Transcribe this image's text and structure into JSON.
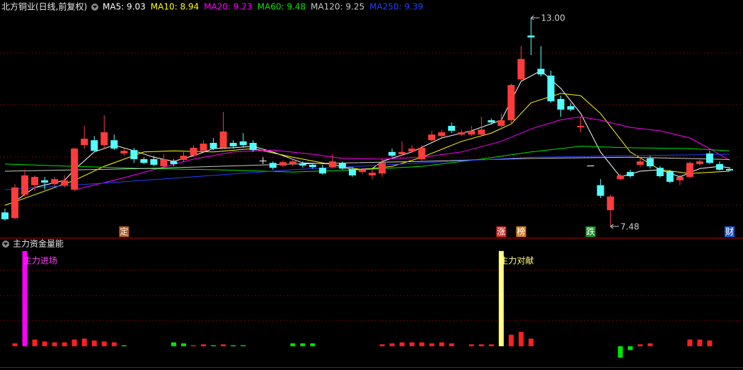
{
  "chart_data": [
    {
      "type": "candlestick",
      "title": "北方铜业(日线,前复权)",
      "open": [
        7.85,
        7.7,
        8.32,
        8.57,
        8.7,
        8.6,
        8.57,
        8.45,
        9.63,
        9.76,
        9.63,
        9.76,
        9.41,
        9.5,
        9.26,
        9.26,
        9.07,
        9.2,
        9.24,
        9.35,
        9.48,
        9.69,
        9.56,
        9.69,
        9.73,
        9.69,
        9.22,
        9.16,
        9.09,
        9.13,
        9.15,
        9.11,
        9.03,
        9.05,
        9.15,
        9.0,
        8.92,
        8.83,
        8.88,
        9.45,
        9.39,
        9.46,
        9.26,
        9.76,
        9.87,
        10.14,
        9.91,
        9.91,
        9.91,
        10.29,
        10.14,
        10.29,
        11.37,
        12.53,
        11.65,
        11.47,
        10.85,
        10.66,
        10.1,
        9.09,
        8.57,
        7.91,
        8.73,
        8.92,
        9.11,
        9.28,
        9.03,
        8.94,
        8.7,
        8.79,
        9.13,
        9.41,
        9.13,
        9.0
      ],
      "high": [
        7.95,
        8.6,
        8.98,
        8.83,
        8.79,
        8.79,
        8.83,
        9.56,
        10.14,
        9.87,
        10.42,
        9.91,
        9.56,
        9.56,
        9.31,
        9.35,
        9.39,
        9.26,
        9.45,
        9.63,
        9.76,
        9.82,
        10.51,
        9.76,
        9.95,
        9.76,
        9.31,
        9.2,
        9.22,
        9.26,
        9.2,
        9.16,
        9.11,
        9.39,
        9.2,
        9.05,
        9.03,
        8.98,
        9.28,
        9.54,
        9.73,
        9.63,
        9.63,
        10.01,
        10.04,
        10.23,
        10.04,
        10.14,
        10.38,
        10.34,
        10.47,
        11.26,
        12.25,
        13.0,
        12.25,
        11.6,
        10.94,
        10.74,
        10.38,
        9.09,
        8.73,
        8.32,
        8.88,
        8.98,
        9.31,
        9.35,
        9.07,
        8.98,
        8.85,
        9.2,
        9.24,
        9.48,
        9.2,
        9.05
      ],
      "low": [
        7.63,
        7.67,
        8.27,
        8.42,
        8.45,
        8.55,
        8.51,
        8.42,
        9.54,
        9.45,
        9.54,
        9.5,
        9.35,
        9.16,
        9.13,
        9.07,
        9.01,
        9.07,
        9.2,
        9.31,
        9.45,
        9.5,
        9.54,
        9.54,
        9.56,
        9.45,
        9.13,
        8.98,
        9.05,
        9.07,
        9.03,
        9.01,
        8.85,
        9.01,
        8.98,
        8.79,
        8.87,
        8.73,
        8.79,
        9.31,
        9.35,
        9.43,
        9.22,
        9.73,
        9.82,
        9.95,
        9.87,
        9.87,
        9.87,
        10.17,
        10.1,
        10.19,
        11.32,
        12.01,
        11.45,
        10.75,
        10.38,
        10.53,
        9.97,
        9.09,
        8.23,
        7.48,
        8.7,
        8.77,
        9.05,
        9.01,
        8.77,
        8.62,
        8.57,
        8.75,
        9.09,
        9.13,
        8.96,
        8.94
      ],
      "close": [
        7.67,
        8.51,
        8.83,
        8.79,
        8.64,
        8.73,
        8.7,
        9.54,
        9.8,
        9.48,
        9.97,
        9.54,
        9.48,
        9.26,
        9.16,
        9.11,
        9.26,
        9.13,
        9.35,
        9.56,
        9.67,
        9.54,
        9.99,
        9.6,
        9.63,
        9.5,
        9.22,
        9.03,
        9.18,
        9.2,
        9.09,
        9.05,
        8.88,
        9.2,
        9.01,
        8.83,
        8.98,
        8.9,
        9.16,
        9.35,
        9.45,
        9.54,
        9.56,
        9.91,
        9.97,
        10.01,
        9.97,
        10.01,
        10.04,
        10.23,
        10.29,
        11.22,
        11.91,
        12.48,
        11.5,
        10.79,
        10.57,
        10.57,
        10.14,
        9.09,
        8.29,
        8.27,
        8.83,
        8.81,
        9.2,
        9.07,
        8.81,
        8.66,
        8.79,
        9.16,
        9.2,
        9.16,
        8.98,
        8.96
      ],
      "up_color": "#ff3c3c",
      "down_color": "#54ffff",
      "flat_color": "#ffffff",
      "ylim": [
        7.2,
        13.47
      ],
      "annotations": [
        "13.00",
        "7.48"
      ],
      "series": [
        {
          "name": "MA5: 9.03",
          "color": "#ffffff",
          "x": [
            1,
            3,
            6,
            7,
            9,
            11,
            13,
            15,
            17,
            19,
            21,
            23,
            25,
            27,
            30,
            33,
            35,
            37,
            38,
            41,
            44,
            47,
            50,
            52,
            54,
            56,
            58,
            60,
            62,
            64,
            66,
            68,
            70,
            72,
            73
          ],
          "values": [
            8.14,
            8.51,
            8.7,
            8.98,
            9.45,
            9.63,
            9.48,
            9.31,
            9.2,
            9.35,
            9.54,
            9.56,
            9.6,
            9.45,
            9.16,
            9.13,
            8.98,
            9.01,
            9.2,
            9.45,
            9.82,
            10.01,
            10.29,
            11.32,
            11.6,
            11.13,
            10.47,
            9.45,
            8.79,
            8.94,
            8.98,
            8.79,
            9.01,
            9.07,
            9.03
          ]
        },
        {
          "name": "MA10: 8.94",
          "color": "#ffff00",
          "x": [
            0,
            3,
            7,
            10,
            14,
            17,
            21,
            25,
            29,
            32,
            36,
            39,
            42,
            46,
            49,
            51,
            53,
            56,
            58,
            60,
            63,
            66,
            69,
            73
          ],
          "values": [
            8.04,
            8.32,
            8.7,
            9.07,
            9.45,
            9.48,
            9.45,
            9.54,
            9.31,
            9.16,
            8.98,
            9.07,
            9.31,
            9.73,
            9.95,
            10.19,
            10.75,
            11.0,
            10.94,
            10.47,
            9.45,
            8.98,
            8.88,
            8.94
          ]
        },
        {
          "name": "MA20: 9.23",
          "color": "#ff00ff",
          "x": [
            7,
            11,
            15,
            19,
            23,
            27,
            31,
            34,
            38,
            42,
            46,
            50,
            53,
            56,
            58,
            60,
            63,
            66,
            69,
            71,
            73
          ],
          "values": [
            8.45,
            8.7,
            8.98,
            9.26,
            9.45,
            9.5,
            9.39,
            9.28,
            9.26,
            9.31,
            9.45,
            9.73,
            10.06,
            10.3,
            10.38,
            10.29,
            10.1,
            10.01,
            9.82,
            9.54,
            9.23
          ]
        },
        {
          "name": "MA60: 9.48",
          "color": "#00e600",
          "x": [
            0,
            7,
            14,
            21,
            29,
            36,
            42,
            48,
            53,
            58,
            63,
            69,
            73
          ],
          "values": [
            9.13,
            9.07,
            9.01,
            8.98,
            8.92,
            8.98,
            9.07,
            9.26,
            9.45,
            9.6,
            9.56,
            9.54,
            9.48
          ]
        },
        {
          "name": "MA120: 9.25",
          "color": "#c8c8c8",
          "x": [
            0,
            14,
            29,
            42,
            53,
            63,
            73
          ],
          "values": [
            8.94,
            9.01,
            9.13,
            9.2,
            9.28,
            9.31,
            9.25
          ]
        },
        {
          "name": "MA250: 9.39",
          "color": "#2040ff",
          "x": [
            0,
            14,
            29,
            42,
            53,
            63,
            73
          ],
          "values": [
            8.45,
            8.7,
            8.98,
            9.16,
            9.31,
            9.35,
            9.39
          ]
        }
      ],
      "events": [
        {
          "text": "定",
          "x": 12,
          "color": "#b05a1e"
        },
        {
          "text": "涨",
          "x": 50,
          "color": "#d22828"
        },
        {
          "text": "榜",
          "x": 52,
          "color": "#d2781e"
        },
        {
          "text": "跌",
          "x": 59,
          "color": "#1e8c28"
        },
        {
          "text": "财",
          "x": 73,
          "color": "#1e5ad2"
        }
      ]
    },
    {
      "type": "bar",
      "title": "主力资金量能",
      "values": [
        null,
        3,
        100,
        7,
        5,
        4,
        4,
        7,
        8,
        6,
        5,
        4,
        1,
        null,
        null,
        null,
        null,
        4,
        3,
        1,
        2,
        1,
        2,
        1,
        1,
        null,
        null,
        null,
        null,
        3,
        3,
        3,
        null,
        null,
        null,
        null,
        null,
        null,
        2,
        3,
        4,
        4,
        4,
        3,
        4,
        3,
        null,
        2,
        2,
        2,
        100,
        12,
        15,
        8,
        null,
        null,
        null,
        null,
        null,
        null,
        null,
        null,
        -12,
        -4,
        2,
        3,
        null,
        null,
        null,
        7,
        7,
        6,
        null,
        null
      ],
      "colors": [
        null,
        "#ff2020",
        "#ff00ff",
        "#ff2020",
        "#ff2020",
        "#ff2020",
        "#ff2020",
        "#ff2020",
        "#ff2020",
        "#ff2020",
        "#ff2020",
        "#ff2020",
        "#00e600",
        null,
        null,
        null,
        null,
        "#00e600",
        "#00e600",
        "#ff2020",
        "#ff2020",
        "#00e600",
        "#ff2020",
        "#00e600",
        "#00e600",
        null,
        null,
        null,
        null,
        "#00e600",
        "#00e600",
        "#00e600",
        null,
        null,
        null,
        null,
        null,
        null,
        "#ff2020",
        "#ff2020",
        "#ff2020",
        "#ff2020",
        "#ff2020",
        "#ff2020",
        "#ff2020",
        "#ff2020",
        null,
        "#ff2020",
        "#ff2020",
        "#ff2020",
        "#ffff80",
        "#ff2020",
        "#ff2020",
        "#ff2020",
        null,
        null,
        null,
        null,
        null,
        null,
        null,
        null,
        "#00e600",
        "#00e600",
        "#ff2020",
        "#ff2020",
        null,
        null,
        null,
        "#ff2020",
        "#ff2020",
        "#ff2020",
        null,
        null
      ],
      "ylim": [
        -22,
        111
      ],
      "annotations": [
        {
          "text": "主力进场",
          "x": 2,
          "color": "#ff40ff"
        },
        {
          "text": "主力对献",
          "x": 50,
          "color": "#ffff80"
        }
      ]
    }
  ]
}
